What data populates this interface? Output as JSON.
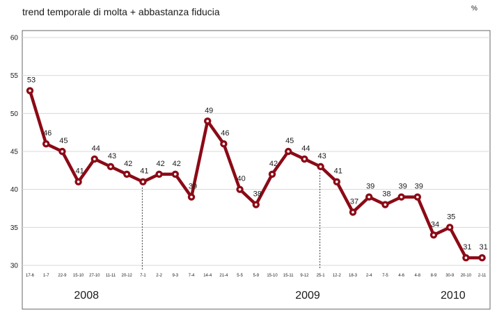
{
  "chart_data": {
    "type": "line",
    "title": "trend temporale di molta + abbastanza fiducia",
    "unit": "%",
    "ylim": [
      30,
      60
    ],
    "yticks": [
      30,
      35,
      40,
      45,
      50,
      55,
      60
    ],
    "grid": true,
    "colors": {
      "line": "#8b0a16",
      "marker_fill": "#ffffff",
      "grid": "#d8d8d8"
    },
    "categories": [
      "17-6",
      "1-7",
      "22-9",
      "15-10",
      "27-10",
      "11-11",
      "20-12",
      "7-1",
      "2-2",
      "9-3",
      "7-4",
      "14-4",
      "21-4",
      "5-5",
      "5-9",
      "15-10",
      "15-11",
      "9-12",
      "25-1",
      "12-2",
      "18-3",
      "2-4",
      "7-5",
      "4-6",
      "4-8",
      "8-9",
      "30-9",
      "20-10",
      "2-11"
    ],
    "series": [
      {
        "values": [
          53,
          46,
          45,
          41,
          44,
          43,
          42,
          41,
          42,
          42,
          39,
          49,
          46,
          40,
          38,
          42,
          45,
          44,
          43,
          41,
          37,
          39,
          38,
          39,
          39,
          34,
          35,
          31,
          31
        ]
      }
    ],
    "years": [
      {
        "label": "2008",
        "at": 3.5
      },
      {
        "label": "2009",
        "at": 17.2
      },
      {
        "label": "2010",
        "at": 26.2
      }
    ],
    "dividers_after": [
      7,
      18
    ]
  }
}
